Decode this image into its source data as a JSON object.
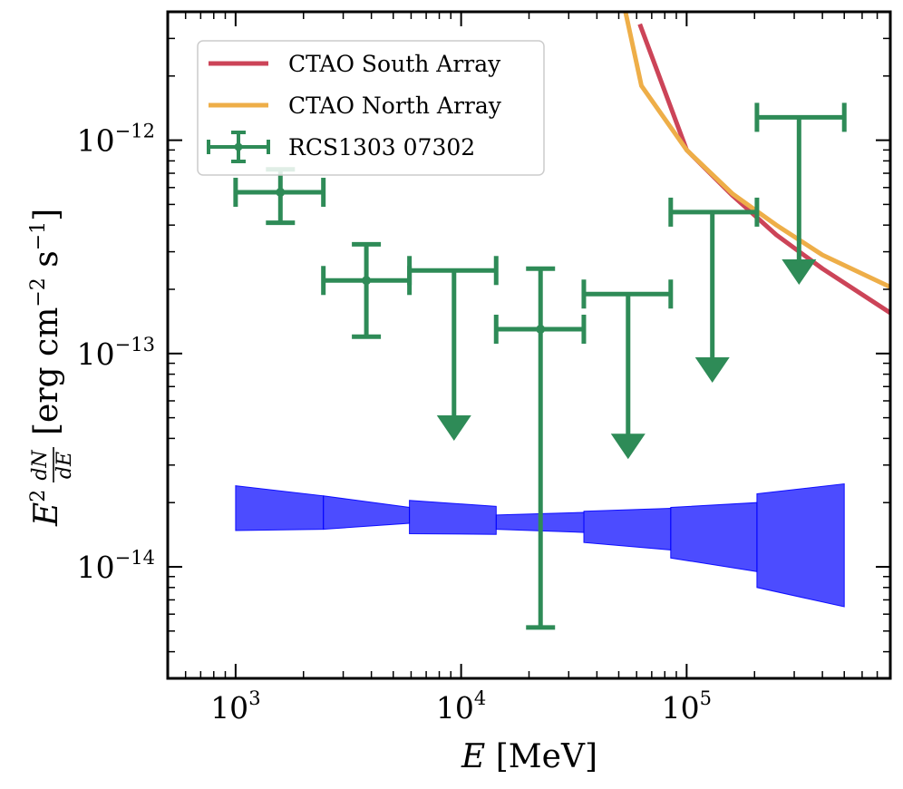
{
  "chart_data": {
    "type": "scatter",
    "xscale": "log",
    "yscale": "log",
    "xlim": [
      500,
      800000
    ],
    "ylim": [
      3e-15,
      4e-12
    ],
    "xlabel": {
      "var": "E",
      "unit": "[MeV]"
    },
    "ylabel": {
      "prefix": "E",
      "power": "2",
      "num": "dN",
      "den": "dE",
      "bracket_open": "[erg cm",
      "cm_power": "−2",
      "mid": " s",
      "s_power": "−1",
      "bracket_close": "]"
    },
    "x_ticks": [
      {
        "value": 1000,
        "base": "10",
        "exp": "3"
      },
      {
        "value": 10000,
        "base": "10",
        "exp": "4"
      },
      {
        "value": 100000,
        "base": "10",
        "exp": "5"
      }
    ],
    "y_ticks": [
      {
        "value": 1e-14,
        "base": "10",
        "exp": "−14"
      },
      {
        "value": 1e-13,
        "base": "10",
        "exp": "−13"
      },
      {
        "value": 1e-12,
        "base": "10",
        "exp": "−12"
      }
    ],
    "legend": {
      "position": "top-left",
      "entries": [
        {
          "label": "CTAO South Array",
          "color": "#cc4458",
          "kind": "line"
        },
        {
          "label": "CTAO North Array",
          "color": "#eeae48",
          "kind": "line"
        },
        {
          "label": "RCS1303 07302",
          "color": "#2e8b57",
          "kind": "errorbar"
        }
      ]
    },
    "series": [
      {
        "name": "CTAO South Array",
        "color": "#cc4458",
        "points": [
          [
            62000,
            3.5e-12
          ],
          [
            100000,
            9e-13
          ],
          [
            160000,
            5.5e-13
          ],
          [
            250000,
            3.6e-13
          ],
          [
            400000,
            2.5e-13
          ],
          [
            800000,
            1.55e-13
          ]
        ]
      },
      {
        "name": "CTAO North Array",
        "color": "#eeae48",
        "points": [
          [
            53000,
            4.2e-12
          ],
          [
            63000,
            1.8e-12
          ],
          [
            100000,
            9e-13
          ],
          [
            160000,
            5.6e-13
          ],
          [
            250000,
            4e-13
          ],
          [
            400000,
            2.9e-13
          ],
          [
            800000,
            2.05e-13
          ]
        ]
      }
    ],
    "points": [
      {
        "x": 1580,
        "xlo": 1000,
        "xhi": 2450,
        "y": 5.7e-13,
        "ylo": 4.1e-13,
        "yhi": 7.3e-13
      },
      {
        "x": 3800,
        "xlo": 2450,
        "xhi": 5900,
        "y": 2.2e-13,
        "ylo": 1.2e-13,
        "yhi": 3.25e-13
      },
      {
        "x": 22500,
        "xlo": 14300,
        "xhi": 35000,
        "y": 1.3e-13,
        "ylo": 5.2e-15,
        "yhi": 2.5e-13
      }
    ],
    "upper_limits": [
      {
        "x": 9300,
        "xlo": 5900,
        "xhi": 14300,
        "y": 2.45e-13,
        "arrow_to": 3.9e-14
      },
      {
        "x": 55000,
        "xlo": 35000,
        "xhi": 85000,
        "y": 1.9e-13,
        "arrow_to": 3.2e-14
      },
      {
        "x": 130000,
        "xlo": 85000,
        "xhi": 205000,
        "y": 4.6e-13,
        "arrow_to": 7.3e-14
      },
      {
        "x": 315000,
        "xlo": 205000,
        "xhi": 500000,
        "y": 1.28e-12,
        "arrow_to": 2.1e-13
      }
    ],
    "butterfly": {
      "color": "#0000ff",
      "opacity": 0.7,
      "segments": [
        {
          "x0": 1000,
          "x1": 2450,
          "hi0": 2.4e-14,
          "hi1": 2.15e-14,
          "lo0": 1.48e-14,
          "lo1": 1.5e-14
        },
        {
          "x0": 2450,
          "x1": 5900,
          "hi0": 2.15e-14,
          "hi1": 1.9e-14,
          "lo0": 1.5e-14,
          "lo1": 1.6e-14
        },
        {
          "x0": 5900,
          "x1": 14300,
          "hi0": 2.05e-14,
          "hi1": 1.92e-14,
          "lo0": 1.43e-14,
          "lo1": 1.42e-14
        },
        {
          "x0": 14300,
          "x1": 35000,
          "hi0": 1.75e-14,
          "hi1": 1.8e-14,
          "lo0": 1.5e-14,
          "lo1": 1.45e-14
        },
        {
          "x0": 35000,
          "x1": 85000,
          "hi0": 1.82e-14,
          "hi1": 1.88e-14,
          "lo0": 1.3e-14,
          "lo1": 1.2e-14
        },
        {
          "x0": 85000,
          "x1": 205000,
          "hi0": 1.9e-14,
          "hi1": 2e-14,
          "lo0": 1.1e-14,
          "lo1": 9.5e-15
        },
        {
          "x0": 205000,
          "x1": 500000,
          "hi0": 2.2e-14,
          "hi1": 2.45e-14,
          "lo0": 8e-15,
          "lo1": 6.5e-15
        }
      ]
    }
  }
}
